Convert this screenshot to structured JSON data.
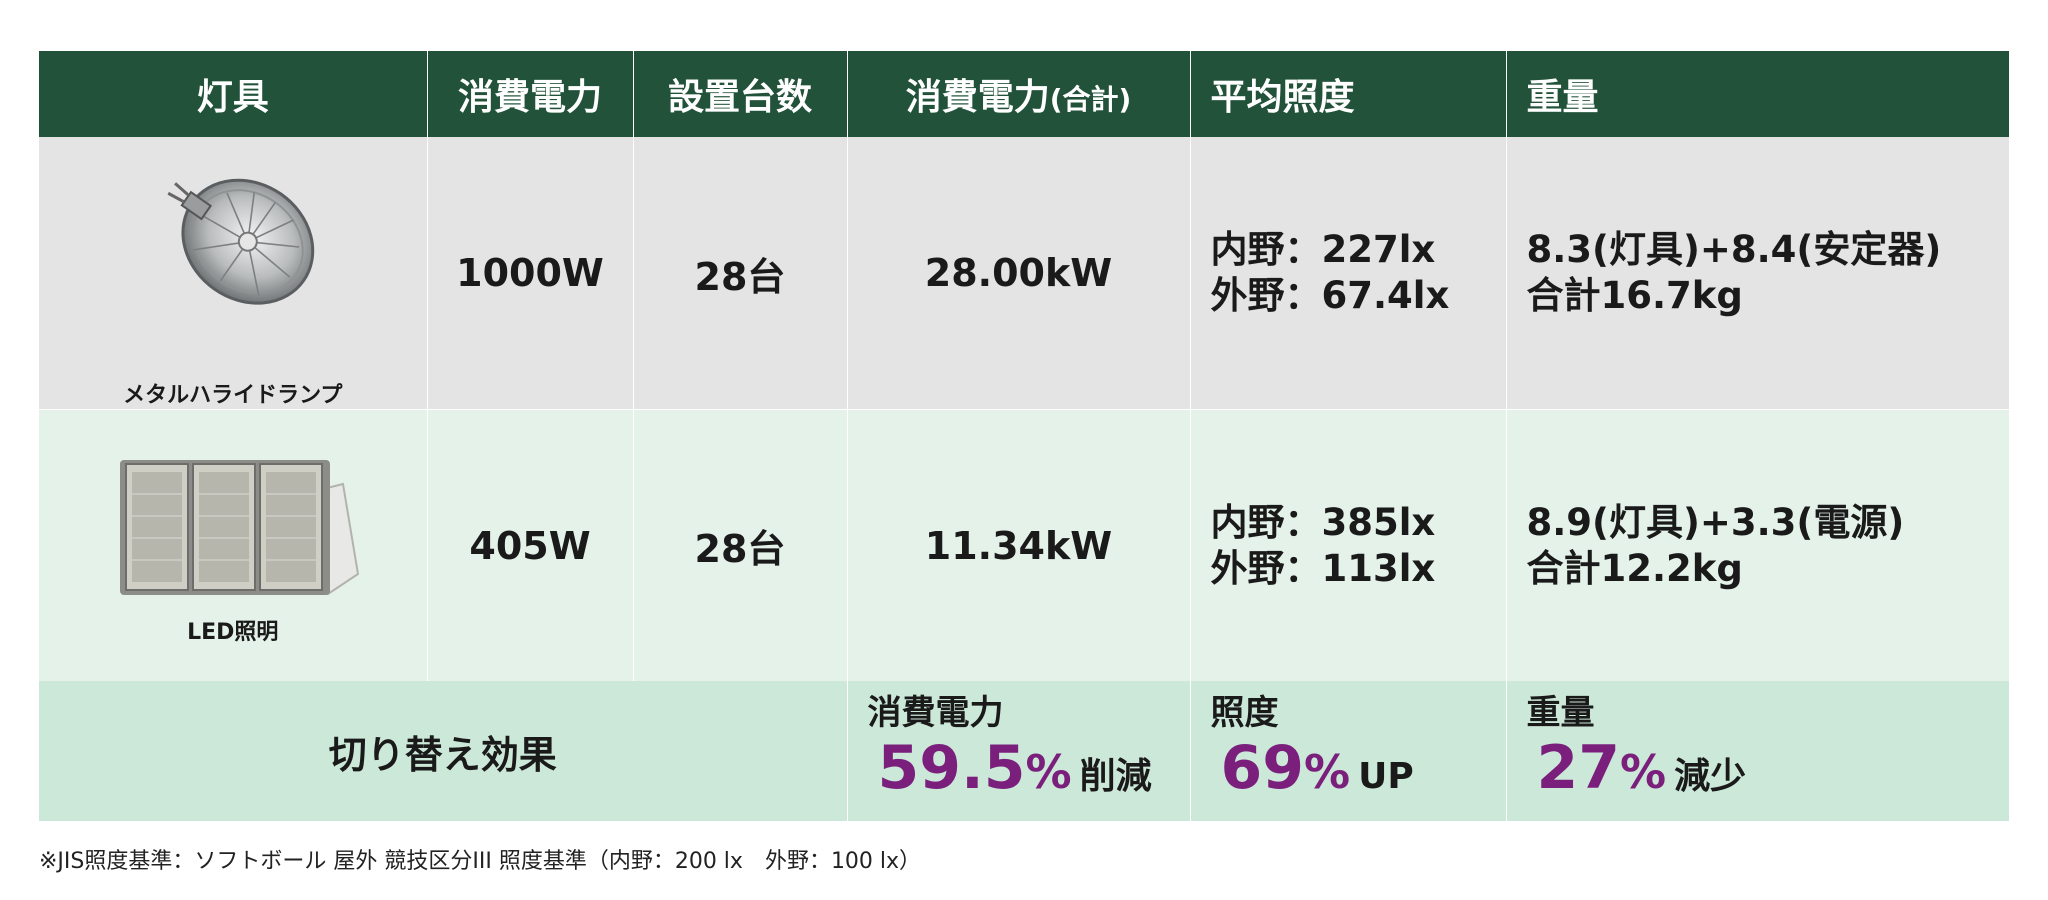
{
  "headers": {
    "fixture": "灯具",
    "power": "消費電力",
    "units": "設置台数",
    "total_power": "消費電力",
    "total_power_suffix": "(合計)",
    "illuminance": "平均照度",
    "weight": "重量"
  },
  "rows": [
    {
      "fixture_label": "メタルハライドランプ",
      "fixture_icon": "metal-halide-lamp-icon",
      "power": "1000W",
      "units": "28台",
      "total_power": "28.00kW",
      "illuminance_line1": "内野：227lx",
      "illuminance_line2": "外野：67.4lx",
      "weight_line1": "8.3(灯具)+8.4(安定器)",
      "weight_line2": "合計16.7kg"
    },
    {
      "fixture_label": "LED照明",
      "fixture_icon": "led-floodlight-icon",
      "power": "405W",
      "units": "28台",
      "total_power": "11.34kW",
      "illuminance_line1": "内野：385lx",
      "illuminance_line2": "外野：113lx",
      "weight_line1": "8.9(灯具)+3.3(電源)",
      "weight_line2": "合計12.2kg"
    }
  ],
  "effect": {
    "title": "切り替え効果",
    "power": {
      "caption": "消費電力",
      "value": "59.5",
      "percent": "%",
      "suffix": "削減"
    },
    "illuminance": {
      "caption": "照度",
      "value": "69",
      "percent": "%",
      "suffix": "UP"
    },
    "weight": {
      "caption": "重量",
      "value": "27",
      "percent": "%",
      "suffix": "減少"
    }
  },
  "colors": {
    "header_bg": "#22523a",
    "row1_bg": "#e5e4e5",
    "row2_bg": "#e4f2ea",
    "effect_bg": "#cce8d9",
    "accent_purple": "#7a1f7c"
  },
  "footnote": "※JIS照度基準：ソフトボール 屋外 競技区分III 照度基準（内野：200 lx　外野：100 lx）"
}
